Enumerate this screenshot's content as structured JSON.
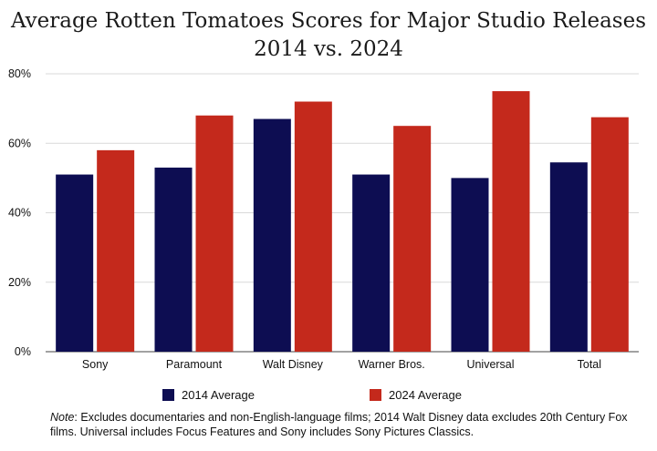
{
  "chart_data": {
    "type": "bar",
    "title": "Average Rotten Tomatoes Scores for Major Studio Releases",
    "subtitle": "2014 vs. 2024",
    "categories": [
      "Sony",
      "Paramount",
      "Walt Disney",
      "Warner Bros.",
      "Universal",
      "Total"
    ],
    "series": [
      {
        "name": "2014 Average",
        "values": [
          51,
          53,
          67,
          51,
          50,
          54.5
        ],
        "color": "#0d0d52"
      },
      {
        "name": "2024 Average",
        "values": [
          58,
          68,
          72,
          65,
          75,
          67.5
        ],
        "color": "#c4291c"
      }
    ],
    "ylim": [
      0,
      80
    ],
    "yticks": [
      "0%",
      "20%",
      "40%",
      "60%",
      "80%"
    ],
    "ytick_values": [
      0,
      20,
      40,
      60,
      80
    ],
    "grid": true,
    "legend_position": "bottom"
  },
  "note": {
    "label": "Note",
    "text": ": Excludes documentaries and non-English-language films; 2014 Walt Disney data excludes 20th Century Fox films. Universal includes Focus Features and Sony includes Sony Pictures Classics."
  }
}
